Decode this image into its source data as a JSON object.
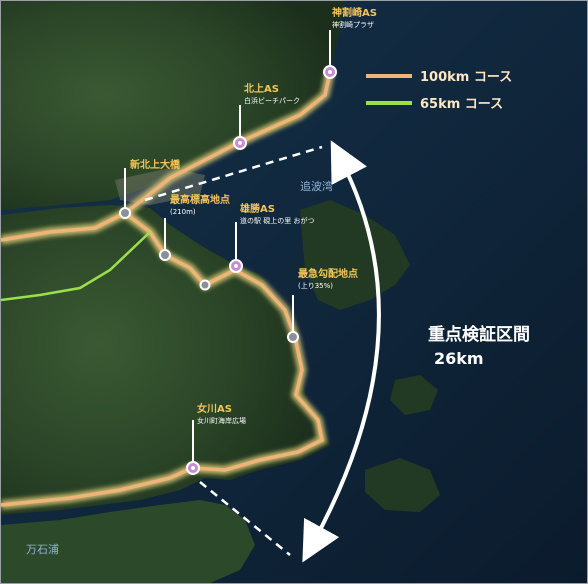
{
  "legend": [
    {
      "label": "100km コース",
      "color": "#f0b37a"
    },
    {
      "label": "65km コース",
      "color": "#9be04a"
    }
  ],
  "places": [
    {
      "name": "神割崎AS",
      "sub": "神割崎プラザ",
      "type": "aid-station"
    },
    {
      "name": "北上AS",
      "sub": "白浜ビーチパーク",
      "type": "aid-station"
    },
    {
      "name": "新北上大橋",
      "sub": "",
      "type": "checkpoint"
    },
    {
      "name": "最高標高地点",
      "sub": "(210m)",
      "type": "checkpoint"
    },
    {
      "name": "雄勝AS",
      "sub": "道の駅 硯上の里 おがつ",
      "type": "aid-station"
    },
    {
      "name": "最急勾配地点",
      "sub": "(上り35%)",
      "type": "checkpoint"
    },
    {
      "name": "女川AS",
      "sub": "女川町海岸広場",
      "type": "aid-station"
    }
  ],
  "water_labels": {
    "bay_north": "追波湾",
    "bay_south": "万石浦"
  },
  "section": {
    "title": "重点検証区間",
    "distance": "26km"
  },
  "colors": {
    "route_orange": "#f0b37a",
    "route_glow": "#e7d27a",
    "pin_fill": "#c78bd6",
    "label_yellow": "#f2c45a"
  }
}
